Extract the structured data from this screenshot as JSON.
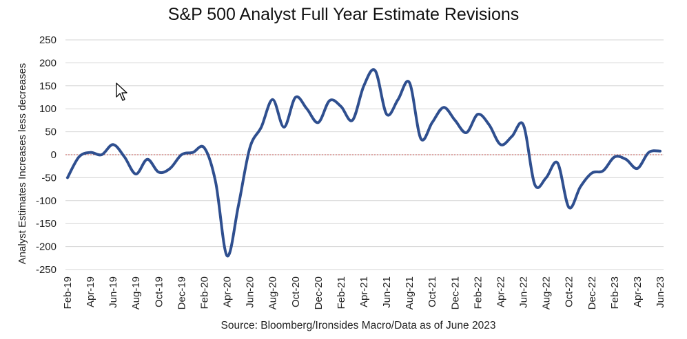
{
  "chart_data": {
    "type": "line",
    "title": "S&P 500 Analyst Full Year Estimate Revisions",
    "xlabel": "",
    "ylabel": "Analyst Estimates Increases less decreases",
    "ylim": [
      -250,
      250
    ],
    "yticks": [
      250,
      200,
      150,
      100,
      50,
      0,
      -50,
      -100,
      -150,
      -200,
      -250
    ],
    "x_tick_labels": [
      "Feb-19",
      "Apr-19",
      "Jun-19",
      "Aug-19",
      "Oct-19",
      "Dec-19",
      "Feb-20",
      "Apr-20",
      "Jun-20",
      "Aug-20",
      "Oct-20",
      "Dec-20",
      "Feb-21",
      "Apr-21",
      "Jun-21",
      "Aug-21",
      "Oct-21",
      "Dec-21",
      "Feb-22",
      "Apr-22",
      "Jun-22",
      "Aug-22",
      "Oct-22",
      "Dec-22",
      "Feb-23",
      "Apr-23",
      "Jun-23"
    ],
    "grid": true,
    "legend": "none",
    "line_color": "#2f4f8f",
    "zero_line_color": "#c0504d",
    "series": [
      {
        "x": [
          "Feb-19",
          "Mar-19",
          "Apr-19",
          "May-19",
          "Jun-19",
          "Jul-19",
          "Aug-19",
          "Sep-19",
          "Oct-19",
          "Nov-19",
          "Dec-19",
          "Jan-20",
          "Feb-20",
          "Mar-20",
          "Apr-20",
          "May-20",
          "Jun-20",
          "Jul-20",
          "Aug-20",
          "Sep-20",
          "Oct-20",
          "Nov-20",
          "Dec-20",
          "Jan-21",
          "Feb-21",
          "Mar-21",
          "Apr-21",
          "May-21",
          "Jun-21",
          "Jul-21",
          "Aug-21",
          "Sep-21",
          "Oct-21",
          "Nov-21",
          "Dec-21",
          "Jan-22",
          "Feb-22",
          "Mar-22",
          "Apr-22",
          "May-22",
          "Jun-22",
          "Jul-22",
          "Aug-22",
          "Sep-22",
          "Oct-22",
          "Nov-22",
          "Dec-22",
          "Jan-23",
          "Feb-23",
          "Mar-23",
          "Apr-23",
          "May-23",
          "Jun-23"
        ],
        "values": [
          -50,
          -5,
          5,
          0,
          22,
          -5,
          -42,
          -10,
          -38,
          -30,
          0,
          5,
          15,
          -60,
          -220,
          -110,
          15,
          60,
          120,
          60,
          125,
          100,
          70,
          118,
          105,
          75,
          150,
          183,
          88,
          120,
          157,
          35,
          70,
          103,
          75,
          48,
          88,
          65,
          22,
          40,
          65,
          -65,
          -50,
          -18,
          -115,
          -70,
          -40,
          -35,
          -5,
          -10,
          -30,
          5,
          8
        ]
      }
    ]
  },
  "source_note": "Source: Bloomberg/Ironsides Macro/Data as of June 2023",
  "cursor": {
    "icon": "mouse-pointer-icon"
  }
}
